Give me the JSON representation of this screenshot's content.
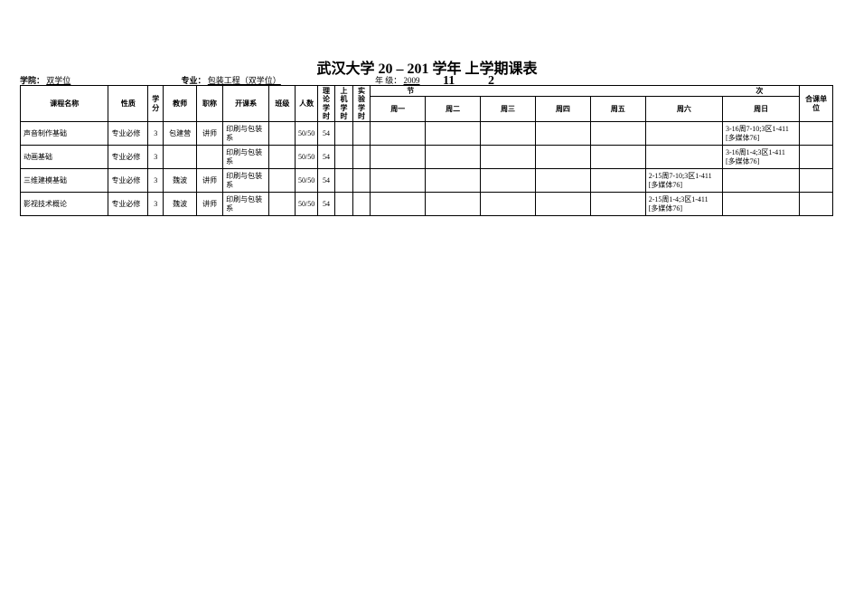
{
  "title_prefix": "武汉大学 20",
  "title_mid": " – ",
  "title_suffix": "201 学年  上学期课表",
  "big_a": "11",
  "big_b": "2",
  "meta": {
    "school_label": "学院：",
    "school_value": "双学位",
    "major_label": "专业：",
    "major_value": "包装工程（双学位）",
    "grade_label": "年  级：",
    "grade_value": "2009"
  },
  "section_header": "节",
  "section_header_tail": "次",
  "headers": {
    "name": "课程名称",
    "type": "性质",
    "credit": "学分",
    "teacher": "教师",
    "title": "职称",
    "dept": "开课系",
    "class": "班级",
    "num": "人数",
    "h1": "理论学时",
    "h2": "上机学时",
    "h3": "实验学时",
    "mon": "周一",
    "tue": "周二",
    "wed": "周三",
    "thu": "周四",
    "fri": "周五",
    "sat": "周六",
    "sun": "周日",
    "unit": "合课单位"
  },
  "rows": [
    {
      "name": "声音制作基础",
      "type": "专业必修",
      "credit": "3",
      "teacher": "包建营",
      "title": "讲师",
      "dept": "印刷与包装系",
      "class": "",
      "num": "50/50",
      "h1": "54",
      "h2": "",
      "h3": "",
      "mon": "",
      "tue": "",
      "wed": "",
      "thu": "",
      "fri": "",
      "sat": "",
      "sun": "3-16周7-10;3区1-411\n[多媒体76]",
      "unit": ""
    },
    {
      "name": "动画基础",
      "type": "专业必修",
      "credit": "3",
      "teacher": "",
      "title": "",
      "dept": "印刷与包装系",
      "class": "",
      "num": "50/50",
      "h1": "54",
      "h2": "",
      "h3": "",
      "mon": "",
      "tue": "",
      "wed": "",
      "thu": "",
      "fri": "",
      "sat": "",
      "sun": "3-16周1-4;3区1-411\n[多媒体76]",
      "unit": ""
    },
    {
      "name": "三维建模基础",
      "type": "专业必修",
      "credit": "3",
      "teacher": "魏波",
      "title": "讲师",
      "dept": "印刷与包装系",
      "class": "",
      "num": "50/50",
      "h1": "54",
      "h2": "",
      "h3": "",
      "mon": "",
      "tue": "",
      "wed": "",
      "thu": "",
      "fri": "",
      "sat": "2-15周7-10;3区1-411\n[多媒体76]",
      "sun": "",
      "unit": ""
    },
    {
      "name": "影视技术概论",
      "type": "专业必修",
      "credit": "3",
      "teacher": "魏波",
      "title": "讲师",
      "dept": "印刷与包装系",
      "class": "",
      "num": "50/50",
      "h1": "54",
      "h2": "",
      "h3": "",
      "mon": "",
      "tue": "",
      "wed": "",
      "thu": "",
      "fri": "",
      "sat": "2-15周1-4;3区1-411\n[多媒体76]",
      "sun": "",
      "unit": ""
    }
  ]
}
